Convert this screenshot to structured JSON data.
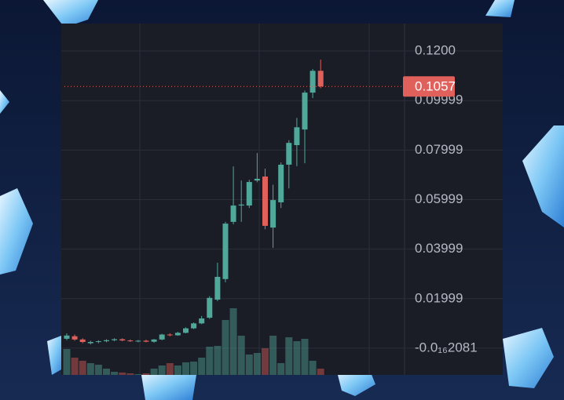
{
  "chart_data": {
    "type": "candlestick",
    "open": [
      0.0038,
      0.0048,
      0.0035,
      0.002,
      0.0025,
      0.0028,
      0.0032,
      0.0036,
      0.0031,
      0.0028,
      0.003,
      0.0026,
      0.0035,
      0.0055,
      0.0052,
      0.0062,
      0.008,
      0.01,
      0.0123,
      0.0196,
      0.0279,
      0.051,
      0.0576,
      0.0576,
      0.0677,
      0.0693,
      0.0487,
      0.0589,
      0.0741,
      0.082,
      0.0883,
      0.1032,
      0.112
    ],
    "high": [
      0.006,
      0.0055,
      0.004,
      0.003,
      0.0032,
      0.0036,
      0.004,
      0.004,
      0.0035,
      0.0033,
      0.0034,
      0.0037,
      0.0058,
      0.006,
      0.0066,
      0.0084,
      0.0104,
      0.013,
      0.021,
      0.0345,
      0.051,
      0.0734,
      0.0677,
      0.068,
      0.0788,
      0.0725,
      0.066,
      0.075,
      0.084,
      0.093,
      0.104,
      0.1127,
      0.1165
    ],
    "low": [
      0.0032,
      0.003,
      0.002,
      0.0015,
      0.002,
      0.0024,
      0.0028,
      0.0028,
      0.0025,
      0.0024,
      0.0024,
      0.0022,
      0.0032,
      0.0048,
      0.005,
      0.006,
      0.0077,
      0.0097,
      0.0118,
      0.019,
      0.0266,
      0.05,
      0.051,
      0.0566,
      0.067,
      0.048,
      0.0405,
      0.0566,
      0.0645,
      0.0735,
      0.0747,
      0.101,
      0.105
    ],
    "close": [
      0.0051,
      0.0035,
      0.0025,
      0.0025,
      0.0028,
      0.0032,
      0.0036,
      0.0031,
      0.0028,
      0.003,
      0.0026,
      0.0035,
      0.0055,
      0.0052,
      0.0062,
      0.008,
      0.01,
      0.012,
      0.0203,
      0.0288,
      0.0503,
      0.0576,
      0.058,
      0.0671,
      0.0684,
      0.0494,
      0.0598,
      0.0741,
      0.0829,
      0.0892,
      0.1032,
      0.112,
      0.1057
    ],
    "volume": [
      33,
      22,
      18,
      15,
      13,
      8,
      4,
      3,
      2,
      1,
      2,
      8,
      12,
      15,
      12,
      16,
      17,
      22,
      36,
      37,
      70,
      85,
      50,
      26,
      28,
      34,
      50,
      15,
      48,
      43,
      46,
      18,
      8
    ],
    "up_color": "#4fa89a",
    "down_color": "#e0605b",
    "ylim": [
      -0.0108,
      0.1311
    ],
    "yticks": [
      {
        "value": 0.12,
        "label": "0.1200"
      },
      0.09999,
      0.07999,
      0.05999,
      0.03999,
      0.01999,
      {
        "value": -2.081e-16,
        "label": "-0.0₁₆2081"
      }
    ],
    "last_price": 0.1057,
    "grid": true
  }
}
